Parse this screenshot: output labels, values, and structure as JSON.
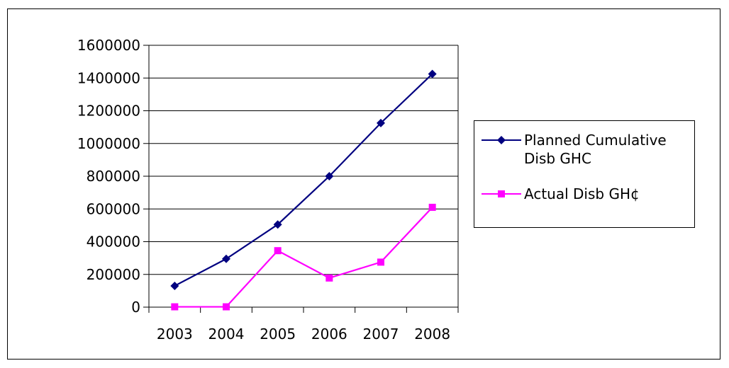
{
  "chart_data": {
    "type": "line",
    "title": "",
    "xlabel": "",
    "ylabel": "",
    "categories": [
      "2003",
      "2004",
      "2005",
      "2006",
      "2007",
      "2008"
    ],
    "ylim": [
      0,
      1600000
    ],
    "y_ticks": [
      "0",
      "200000",
      "400000",
      "600000",
      "800000",
      "1000000",
      "1200000",
      "1400000",
      "1600000"
    ],
    "grid": "horizontal",
    "legend_position": "right",
    "series": [
      {
        "name": "Planned Cumulative Disb GHC",
        "color": "#000080",
        "marker": "diamond",
        "values": [
          130000,
          295000,
          505000,
          800000,
          1125000,
          1425000
        ]
      },
      {
        "name": "Actual Disb GH¢",
        "color": "#ff00ff",
        "marker": "square",
        "values": [
          2000,
          2000,
          345000,
          178000,
          275000,
          610000
        ]
      }
    ]
  }
}
